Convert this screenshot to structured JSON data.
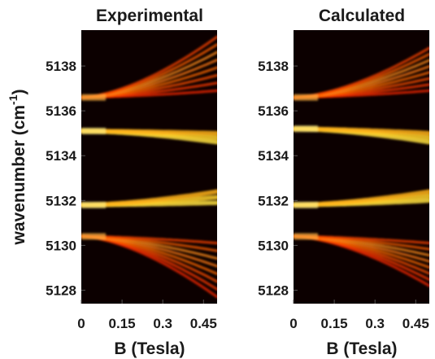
{
  "figure": {
    "ylabel_main": "wavenumber (cm",
    "ylabel_sup": "-1",
    "ylabel_close": ")"
  },
  "chart_data": [
    {
      "type": "heatmap",
      "title": "Experimental",
      "xlabel": "B (Tesla)",
      "ylabel": "wavenumber (cm-1)",
      "xlim": [
        0,
        0.5
      ],
      "ylim": [
        5127.4,
        5139.6
      ],
      "xticks": [
        {
          "value": 0,
          "label": "0"
        },
        {
          "value": 0.15,
          "label": "0.15"
        },
        {
          "value": 0.3,
          "label": "0.3"
        },
        {
          "value": 0.45,
          "label": "0.45"
        }
      ],
      "yticks": [
        {
          "value": 5128,
          "label": "5128"
        },
        {
          "value": 5130,
          "label": "5130"
        },
        {
          "value": 5132,
          "label": "5132"
        },
        {
          "value": 5134,
          "label": "5134"
        },
        {
          "value": 5136,
          "label": "5136"
        },
        {
          "value": 5138,
          "label": "5138"
        }
      ],
      "colormap": "hot",
      "series": [
        {
          "center": 5136.6,
          "fan": "up",
          "lines": 8,
          "end_min": 5136.9,
          "end_max": 5139.3
        },
        {
          "center": 5135.1,
          "fan": "down-narrow",
          "lines": 3,
          "end_min": 5134.6,
          "end_max": 5135.0
        },
        {
          "center": 5131.8,
          "fan": "up-narrow",
          "lines": 3,
          "end_min": 5131.9,
          "end_max": 5132.4
        },
        {
          "center": 5130.4,
          "fan": "down",
          "lines": 8,
          "end_min": 5127.7,
          "end_max": 5130.1
        }
      ]
    },
    {
      "type": "heatmap",
      "title": "Calculated",
      "xlabel": "B (Tesla)",
      "ylabel": "wavenumber (cm-1)",
      "xlim": [
        0,
        0.5
      ],
      "ylim": [
        5127.4,
        5139.6
      ],
      "xticks": [
        {
          "value": 0,
          "label": "0"
        },
        {
          "value": 0.15,
          "label": "0.15"
        },
        {
          "value": 0.3,
          "label": "0.3"
        },
        {
          "value": 0.45,
          "label": "0.45"
        }
      ],
      "yticks": [
        {
          "value": 5128,
          "label": "5128"
        },
        {
          "value": 5130,
          "label": "5130"
        },
        {
          "value": 5132,
          "label": "5132"
        },
        {
          "value": 5134,
          "label": "5134"
        },
        {
          "value": 5136,
          "label": "5136"
        },
        {
          "value": 5138,
          "label": "5138"
        }
      ],
      "colormap": "hot",
      "series": [
        {
          "center": 5136.6,
          "fan": "up",
          "lines": 8,
          "end_min": 5136.9,
          "end_max": 5138.8
        },
        {
          "center": 5135.2,
          "fan": "down-narrow",
          "lines": 3,
          "end_min": 5134.6,
          "end_max": 5135.0
        },
        {
          "center": 5131.8,
          "fan": "up-narrow",
          "lines": 3,
          "end_min": 5132.0,
          "end_max": 5132.4
        },
        {
          "center": 5130.4,
          "fan": "down",
          "lines": 8,
          "end_min": 5128.2,
          "end_max": 5130.1
        }
      ]
    }
  ]
}
